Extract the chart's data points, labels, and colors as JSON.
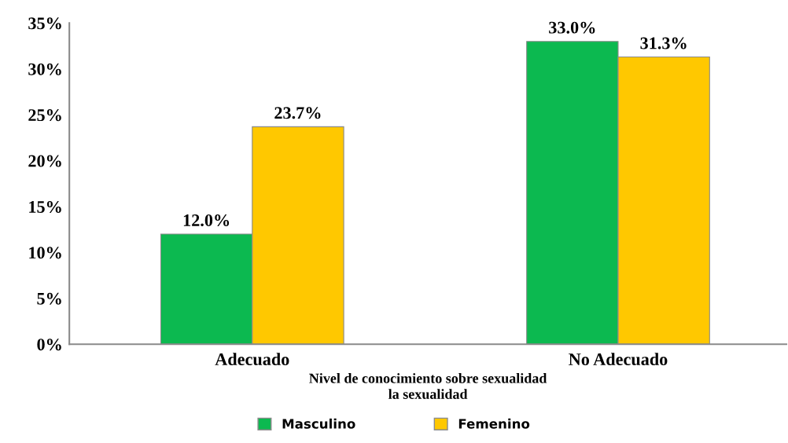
{
  "chart_data": {
    "type": "bar",
    "xlabel": "Nivel de conocimiento sobre sexualidad\nla sexualidad",
    "categories": [
      "Adecuado",
      "No Adecuado"
    ],
    "series": [
      {
        "name": "Masculino",
        "color": "#0cb950",
        "values": [
          12.0,
          33.0
        ],
        "value_labels": [
          "12.0%",
          "33.0%"
        ]
      },
      {
        "name": "Femenino",
        "color": "#ffc800",
        "values": [
          23.7,
          31.3
        ],
        "value_labels": [
          "23.7%",
          "31.3%"
        ]
      }
    ],
    "ylim": [
      0,
      35
    ],
    "yticks": [
      {
        "value": 0,
        "label": "0%"
      },
      {
        "value": 5,
        "label": "5%"
      },
      {
        "value": 10,
        "label": "10%"
      },
      {
        "value": 15,
        "label": "15%"
      },
      {
        "value": 20,
        "label": "20%"
      },
      {
        "value": 25,
        "label": "25%"
      },
      {
        "value": 30,
        "label": "30%"
      },
      {
        "value": 35,
        "label": "35%"
      }
    ],
    "grid": false,
    "legend": "bottom"
  }
}
